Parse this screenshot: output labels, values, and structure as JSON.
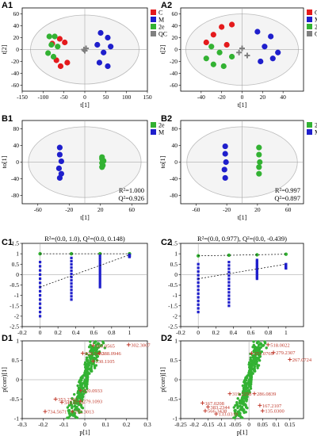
{
  "colors": {
    "C": "#e41a1c",
    "M": "#1f1fcc",
    "2e": "#33b233",
    "QC": "#808080",
    "ellipse_fill": "#f4f4f4",
    "annotation": "#c0392b"
  },
  "chart_data": [
    {
      "id": "A1",
      "type": "scatter",
      "label": "A1",
      "xlabel": "t[1]",
      "ylabel": "t[2]",
      "xlim": [
        -150,
        150
      ],
      "ylim": [
        -70,
        70
      ],
      "xticks": [
        -150,
        -100,
        -50,
        0,
        50,
        100,
        150
      ],
      "yticks": [
        -60,
        -40,
        -20,
        0,
        20,
        40,
        60
      ],
      "ellipse": {
        "rx": 130,
        "ry": 58
      },
      "legend": [
        "C",
        "M",
        "2e",
        "QC"
      ],
      "series": [
        {
          "name": "C",
          "points": [
            [
              -60,
              18
            ],
            [
              -48,
              12
            ],
            [
              -68,
              -18
            ],
            [
              -58,
              -28
            ],
            [
              -42,
              -22
            ],
            [
              -78,
              10
            ]
          ]
        },
        {
          "name": "M",
          "points": [
            [
              38,
              28
            ],
            [
              55,
              20
            ],
            [
              30,
              8
            ],
            [
              62,
              5
            ],
            [
              45,
              -5
            ],
            [
              35,
              -22
            ],
            [
              55,
              -28
            ]
          ]
        },
        {
          "name": "2e",
          "points": [
            [
              -85,
              22
            ],
            [
              -72,
              22
            ],
            [
              -80,
              8
            ],
            [
              -88,
              -6
            ],
            [
              -75,
              -12
            ],
            [
              -65,
              5
            ]
          ]
        },
        {
          "name": "QC",
          "points": [
            [
              -2,
              0
            ],
            [
              3,
              2
            ],
            [
              0,
              -2
            ]
          ]
        }
      ]
    },
    {
      "id": "A2",
      "type": "scatter",
      "label": "A2",
      "xlabel": "t[1]",
      "ylabel": "t[2]",
      "xlim": [
        -60,
        60
      ],
      "ylim": [
        -70,
        70
      ],
      "xticks": [
        -40,
        -20,
        0,
        20,
        40
      ],
      "yticks": [
        -60,
        -40,
        -20,
        0,
        20,
        40,
        60
      ],
      "ellipse": {
        "rx": 55,
        "ry": 60
      },
      "legend": [
        "C",
        "M",
        "2e",
        "QC"
      ],
      "series": [
        {
          "name": "C",
          "points": [
            [
              -20,
              38
            ],
            [
              -10,
              42
            ],
            [
              -35,
              12
            ],
            [
              -28,
              25
            ],
            [
              -15,
              8
            ]
          ]
        },
        {
          "name": "M",
          "points": [
            [
              15,
              30
            ],
            [
              28,
              22
            ],
            [
              22,
              5
            ],
            [
              35,
              -5
            ],
            [
              30,
              -15
            ],
            [
              18,
              -20
            ]
          ]
        },
        {
          "name": "2e",
          "points": [
            [
              -30,
              5
            ],
            [
              -22,
              -5
            ],
            [
              -28,
              -25
            ],
            [
              -18,
              -28
            ],
            [
              -35,
              -15
            ],
            [
              -10,
              -12
            ]
          ]
        },
        {
          "name": "QC",
          "points": [
            [
              0,
              2
            ],
            [
              5,
              -10
            ],
            [
              -3,
              -5
            ]
          ]
        }
      ]
    },
    {
      "id": "B1",
      "type": "scatter",
      "label": "B1",
      "xlabel": "t[1]",
      "ylabel": "to[1]",
      "xlim": [
        -80,
        80
      ],
      "ylim": [
        -100,
        100
      ],
      "xticks": [
        -60,
        -20,
        20,
        60
      ],
      "yticks": [
        -80,
        -40,
        0,
        40,
        80
      ],
      "ellipse": {
        "rx": 72,
        "ry": 85
      },
      "legend": [
        "2e",
        "M"
      ],
      "stats": [
        "R²=1.000",
        "Q²=0.926"
      ],
      "series": [
        {
          "name": "M",
          "points": [
            [
              -32,
              35
            ],
            [
              -32,
              18
            ],
            [
              -30,
              2
            ],
            [
              -33,
              -15
            ],
            [
              -30,
              -28
            ],
            [
              -32,
              -38
            ]
          ]
        },
        {
          "name": "2e",
          "points": [
            [
              22,
              12
            ],
            [
              22,
              8
            ],
            [
              24,
              3
            ],
            [
              22,
              -2
            ],
            [
              23,
              -8
            ],
            [
              22,
              -12
            ]
          ]
        }
      ]
    },
    {
      "id": "B2",
      "type": "scatter",
      "label": "B2",
      "xlabel": "t[1]",
      "ylabel": "to[1]",
      "xlim": [
        -80,
        80
      ],
      "ylim": [
        -100,
        100
      ],
      "xticks": [
        -60,
        -20,
        20,
        60
      ],
      "yticks": [
        -80,
        -40,
        0,
        40,
        80
      ],
      "ellipse": {
        "rx": 72,
        "ry": 85
      },
      "legend": [
        "2e",
        "M"
      ],
      "stats": [
        "R²=0.997",
        "Q²=0.897"
      ],
      "series": [
        {
          "name": "M",
          "points": [
            [
              -22,
              38
            ],
            [
              -22,
              20
            ],
            [
              -21,
              0
            ],
            [
              -23,
              -18
            ],
            [
              -22,
              -38
            ]
          ]
        },
        {
          "name": "2e",
          "points": [
            [
              22,
              35
            ],
            [
              22,
              18
            ],
            [
              23,
              0
            ],
            [
              22,
              -12
            ],
            [
              22,
              -28
            ]
          ]
        }
      ]
    },
    {
      "id": "C1",
      "type": "scatter",
      "label": "C1",
      "title": "R²=(0.0, 1.0), Q²=(0.0, 0.148)",
      "xlim": [
        -0.2,
        1.2
      ],
      "ylim": [
        -2.5,
        1.5
      ],
      "xticks": [
        -0.2,
        0,
        0.2,
        0.4,
        0.6,
        0.8,
        1
      ],
      "yticks": [
        -2.5,
        -2,
        -1.5,
        -1,
        -0.5,
        0,
        0.5,
        1,
        1.5
      ],
      "r2_line": [
        [
          0,
          1.0
        ],
        [
          1,
          1.0
        ]
      ],
      "q2_line": [
        [
          0,
          -0.6
        ],
        [
          1,
          0.95
        ]
      ],
      "series": [
        {
          "name": "R2",
          "points": [
            [
              0,
              1.0
            ],
            [
              0.35,
              1.0
            ],
            [
              0.67,
              1.0
            ],
            [
              1,
              1.0
            ]
          ]
        },
        {
          "name": "Q2",
          "columns": [
            {
              "x": 0,
              "from": -2.0,
              "to": 0.6
            },
            {
              "x": 0.35,
              "from": -1.2,
              "to": 0.8
            },
            {
              "x": 0.67,
              "from": -0.6,
              "to": 0.9
            },
            {
              "x": 1,
              "from": 0.85,
              "to": 0.95
            }
          ]
        }
      ]
    },
    {
      "id": "C2",
      "type": "scatter",
      "label": "C2",
      "title": "R²=(0.0, 0.977), Q²=(0.0, -0.439)",
      "xlim": [
        -0.2,
        1.2
      ],
      "ylim": [
        -2.5,
        1.5
      ],
      "xticks": [
        -0.2,
        0,
        0.2,
        0.4,
        0.6,
        0.8,
        1
      ],
      "yticks": [
        -2.5,
        -2,
        -1.5,
        -1,
        -0.5,
        0,
        0.5,
        1,
        1.5
      ],
      "r2_line": [
        [
          0,
          0.9
        ],
        [
          1,
          0.98
        ]
      ],
      "q2_line": [
        [
          0,
          -0.2
        ],
        [
          1,
          0.5
        ]
      ],
      "series": [
        {
          "name": "R2",
          "points": [
            [
              0,
              0.9
            ],
            [
              0.35,
              0.93
            ],
            [
              0.67,
              0.95
            ],
            [
              1,
              0.98
            ]
          ]
        },
        {
          "name": "Q2",
          "columns": [
            {
              "x": 0,
              "from": -1.8,
              "to": 0.5
            },
            {
              "x": 0.35,
              "from": -1.5,
              "to": 0.6
            },
            {
              "x": 0.67,
              "from": -0.2,
              "to": 0.7
            },
            {
              "x": 1,
              "from": 0.3,
              "to": 0.5
            }
          ]
        }
      ]
    },
    {
      "id": "D1",
      "type": "scatter",
      "label": "D1",
      "xlabel": "p[1]",
      "ylabel": "p(corr)[1]",
      "xlim": [
        -0.3,
        0.3
      ],
      "ylim": [
        -1.0,
        1.0
      ],
      "xticks": [
        -0.3,
        -0.2,
        -0.1,
        0,
        0.1,
        0.2,
        0.3
      ],
      "yticks": [
        -1,
        -0.5,
        0,
        0.5,
        1
      ],
      "annotations": [
        {
          "text": "165.0565",
          "x": 0.04,
          "y": 0.88
        },
        {
          "text": "302.3067",
          "x": 0.21,
          "y": 0.9
        },
        {
          "text": "828.5463",
          "x": -0.01,
          "y": 0.68
        },
        {
          "text": "288.0946",
          "x": 0.07,
          "y": 0.68
        },
        {
          "text": "230.1105",
          "x": 0.04,
          "y": 0.48
        },
        {
          "text": "220.0933",
          "x": -0.02,
          "y": -0.28
        },
        {
          "text": "353.2343",
          "x": -0.14,
          "y": -0.5
        },
        {
          "text": "279.1093",
          "x": -0.02,
          "y": -0.55
        },
        {
          "text": "345.0713",
          "x": -0.11,
          "y": -0.58
        },
        {
          "text": "734.5671",
          "x": -0.19,
          "y": -0.82
        },
        {
          "text": "152.3013",
          "x": -0.06,
          "y": -0.82
        }
      ]
    },
    {
      "id": "D2",
      "type": "scatter",
      "label": "D2",
      "xlabel": "p[1]",
      "ylabel": "p(corr)[1]",
      "xlim": [
        -0.25,
        0.2
      ],
      "ylim": [
        -1.0,
        1.0
      ],
      "xticks": [
        -0.25,
        -0.2,
        -0.15,
        -0.1,
        -0.05,
        0,
        0.05,
        0.1,
        0.15
      ],
      "yticks": [
        -1,
        -0.5,
        0,
        0.5,
        1
      ],
      "annotations": [
        {
          "text": "518.0022",
          "x": 0.07,
          "y": 0.9
        },
        {
          "text": "251.0769",
          "x": 0.01,
          "y": 0.68
        },
        {
          "text": "279.2307",
          "x": 0.09,
          "y": 0.7
        },
        {
          "text": "267.0724",
          "x": 0.15,
          "y": 0.52
        },
        {
          "text": "319.2258",
          "x": -0.07,
          "y": -0.36
        },
        {
          "text": "286.0839",
          "x": 0.02,
          "y": -0.36
        },
        {
          "text": "167.0208",
          "x": -0.17,
          "y": -0.6
        },
        {
          "text": "383.2344",
          "x": -0.15,
          "y": -0.7
        },
        {
          "text": "566.3438",
          "x": -0.16,
          "y": -0.8
        },
        {
          "text": "133.0319",
          "x": -0.12,
          "y": -0.88
        },
        {
          "text": "167.2107",
          "x": 0.04,
          "y": -0.66
        },
        {
          "text": "135.0300",
          "x": 0.05,
          "y": -0.8
        }
      ]
    }
  ]
}
